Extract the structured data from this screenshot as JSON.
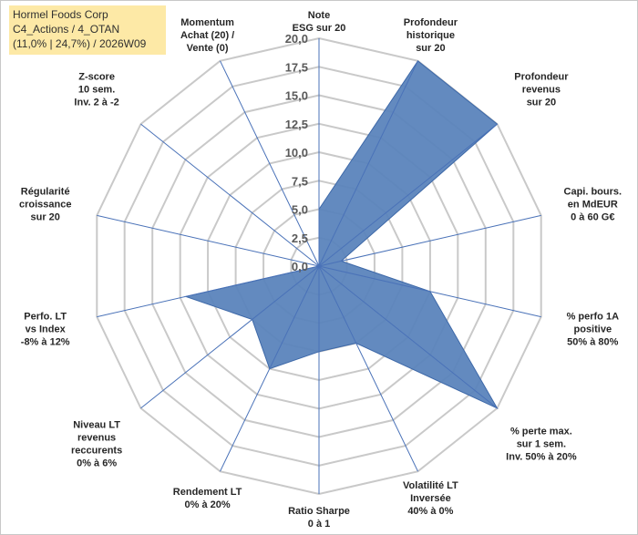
{
  "header": {
    "line1": "Hormel Foods Corp",
    "line2": "C4_Actions / 4_OTAN",
    "line3": "(11,0% | 24,7%) / 2026W09"
  },
  "colors": {
    "fill": "#5b84bc",
    "stroke": "#3d68a8",
    "grid": "#c9c9c9",
    "spoke": "#4a72b8",
    "header_bg": "#fde9a6"
  },
  "chart_data": {
    "type": "radar",
    "rmin": 0,
    "rmax": 20,
    "tick_labels": [
      "0,0",
      "2,5",
      "5,0",
      "7,5",
      "10,0",
      "12,5",
      "15,0",
      "17,5",
      "20,0"
    ],
    "axes": [
      {
        "label": [
          "Note",
          "ESG sur 20"
        ],
        "value": 5.0
      },
      {
        "label": [
          "Profondeur",
          "historique",
          "sur 20"
        ],
        "value": 20.0
      },
      {
        "label": [
          "Profondeur",
          "revenus",
          "sur 20"
        ],
        "value": 20.0
      },
      {
        "label": [
          "Capi. bours.",
          "en MdEUR",
          "0 à 60 G€"
        ],
        "value": 2.0
      },
      {
        "label": [
          "% perfo 1A",
          "positive",
          "50% à 80%"
        ],
        "value": 10.0
      },
      {
        "label": [
          "% perte max.",
          "sur 1 sem.",
          "Inv. 50% à 20%"
        ],
        "value": 20.0
      },
      {
        "label": [
          "Volatilité LT",
          "Inversée",
          "40% à 0%"
        ],
        "value": 7.5
      },
      {
        "label": [
          "Ratio Sharpe",
          "0 à 1"
        ],
        "value": 7.5
      },
      {
        "label": [
          "Rendement LT",
          "0% à 20%"
        ],
        "value": 10.0
      },
      {
        "label": [
          "Niveau LT",
          "revenus",
          "reccurents",
          "0% à 6%"
        ],
        "value": 7.5
      },
      {
        "label": [
          "Perfo. LT",
          "vs Index",
          "-8% à 12%"
        ],
        "value": 12.0
      },
      {
        "label": [
          "Régularité",
          "croissance",
          "sur 20"
        ],
        "value": 0.0
      },
      {
        "label": [
          "Z-score",
          "10 sem.",
          "Inv. 2 à -2"
        ],
        "value": 0.0
      },
      {
        "label": [
          "Momentum",
          "Achat (20) /",
          "Vente (0)"
        ],
        "value": 0.0
      }
    ]
  }
}
